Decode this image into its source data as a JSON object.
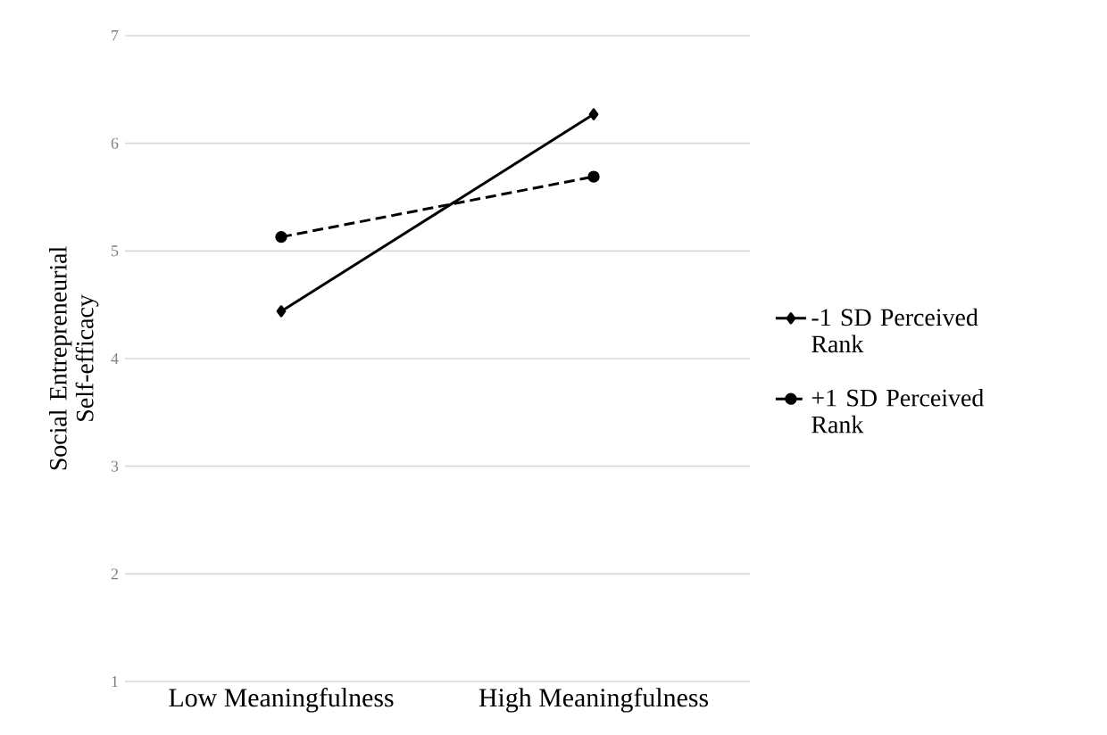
{
  "chart_data": {
    "type": "line",
    "ylabel": "Social Entrepreneurial Self-efficacy",
    "categories": [
      "Low Meaningfulness",
      "High Meaningfulness"
    ],
    "series": [
      {
        "name": "-1 SD Perceived Rank",
        "color": "#000000",
        "values": [
          4.44,
          6.27
        ],
        "marker": "diamond",
        "line_style": "solid"
      },
      {
        "name": "+1 SD Perceived Rank",
        "color": "#000000",
        "values": [
          5.13,
          5.69
        ],
        "marker": "circle",
        "line_style": "dashed"
      }
    ],
    "ylim": [
      1,
      7
    ],
    "yticks": [
      1,
      2,
      3,
      4,
      5,
      6,
      7
    ],
    "grid": "y",
    "legend": "right"
  }
}
